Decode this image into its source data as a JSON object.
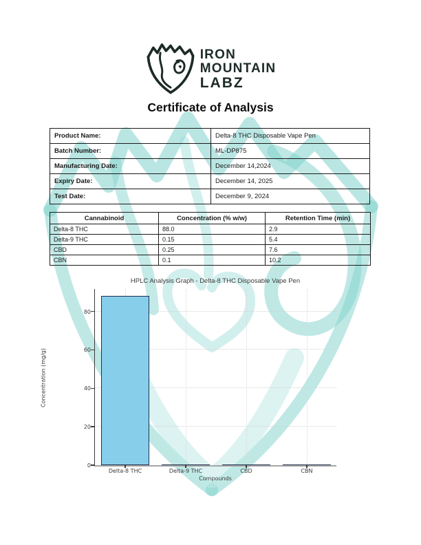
{
  "brand": {
    "line1": "IRON",
    "line2": "MOUNTAIN",
    "line3": "LABZ",
    "logo_color": "#1d2b28",
    "watermark_color": "#7fd2cc"
  },
  "title": "Certificate of Analysis",
  "product_info": {
    "rows": [
      {
        "label": "Product Name:",
        "value": "Delta-8 THC Disposable Vape Pen"
      },
      {
        "label": "Batch Number:",
        "value": "ML-DP875"
      },
      {
        "label": "Manufacturing Date:",
        "value": "December 14,2024"
      },
      {
        "label": "Expiry Date:",
        "value": "December 14, 2025"
      },
      {
        "label": "Test Date:",
        "value": "December 9, 2024"
      }
    ]
  },
  "results_table": {
    "headers": [
      "Cannabinoid",
      "Concentration (% w/w)",
      "Retention Time (min)"
    ],
    "rows": [
      [
        "Delta-8 THC",
        "88.0",
        "2.9"
      ],
      [
        "Delta-9 THC",
        "0.15",
        "5.4"
      ],
      [
        "CBD",
        "0.25",
        "7.6"
      ],
      [
        "CBN",
        "0.1",
        "10.2"
      ]
    ]
  },
  "chart_data": {
    "type": "bar",
    "title": "HPLC Analysis Graph - Delta-8 THC Disposable Vape Pen",
    "categories": [
      "Delta-8 THC",
      "Delta-9 THC",
      "CBD",
      "CBN"
    ],
    "values": [
      88.0,
      0.15,
      0.25,
      0.1
    ],
    "xlabel": "Compounds",
    "ylabel": "Concentration (mg/g)",
    "ylim": [
      0,
      92.4
    ],
    "yticks": [
      0,
      20,
      40,
      60,
      80
    ],
    "grid": true,
    "legend": false,
    "bar_color": "#87ceeb",
    "bar_edge_color": "#1f2f4d"
  }
}
